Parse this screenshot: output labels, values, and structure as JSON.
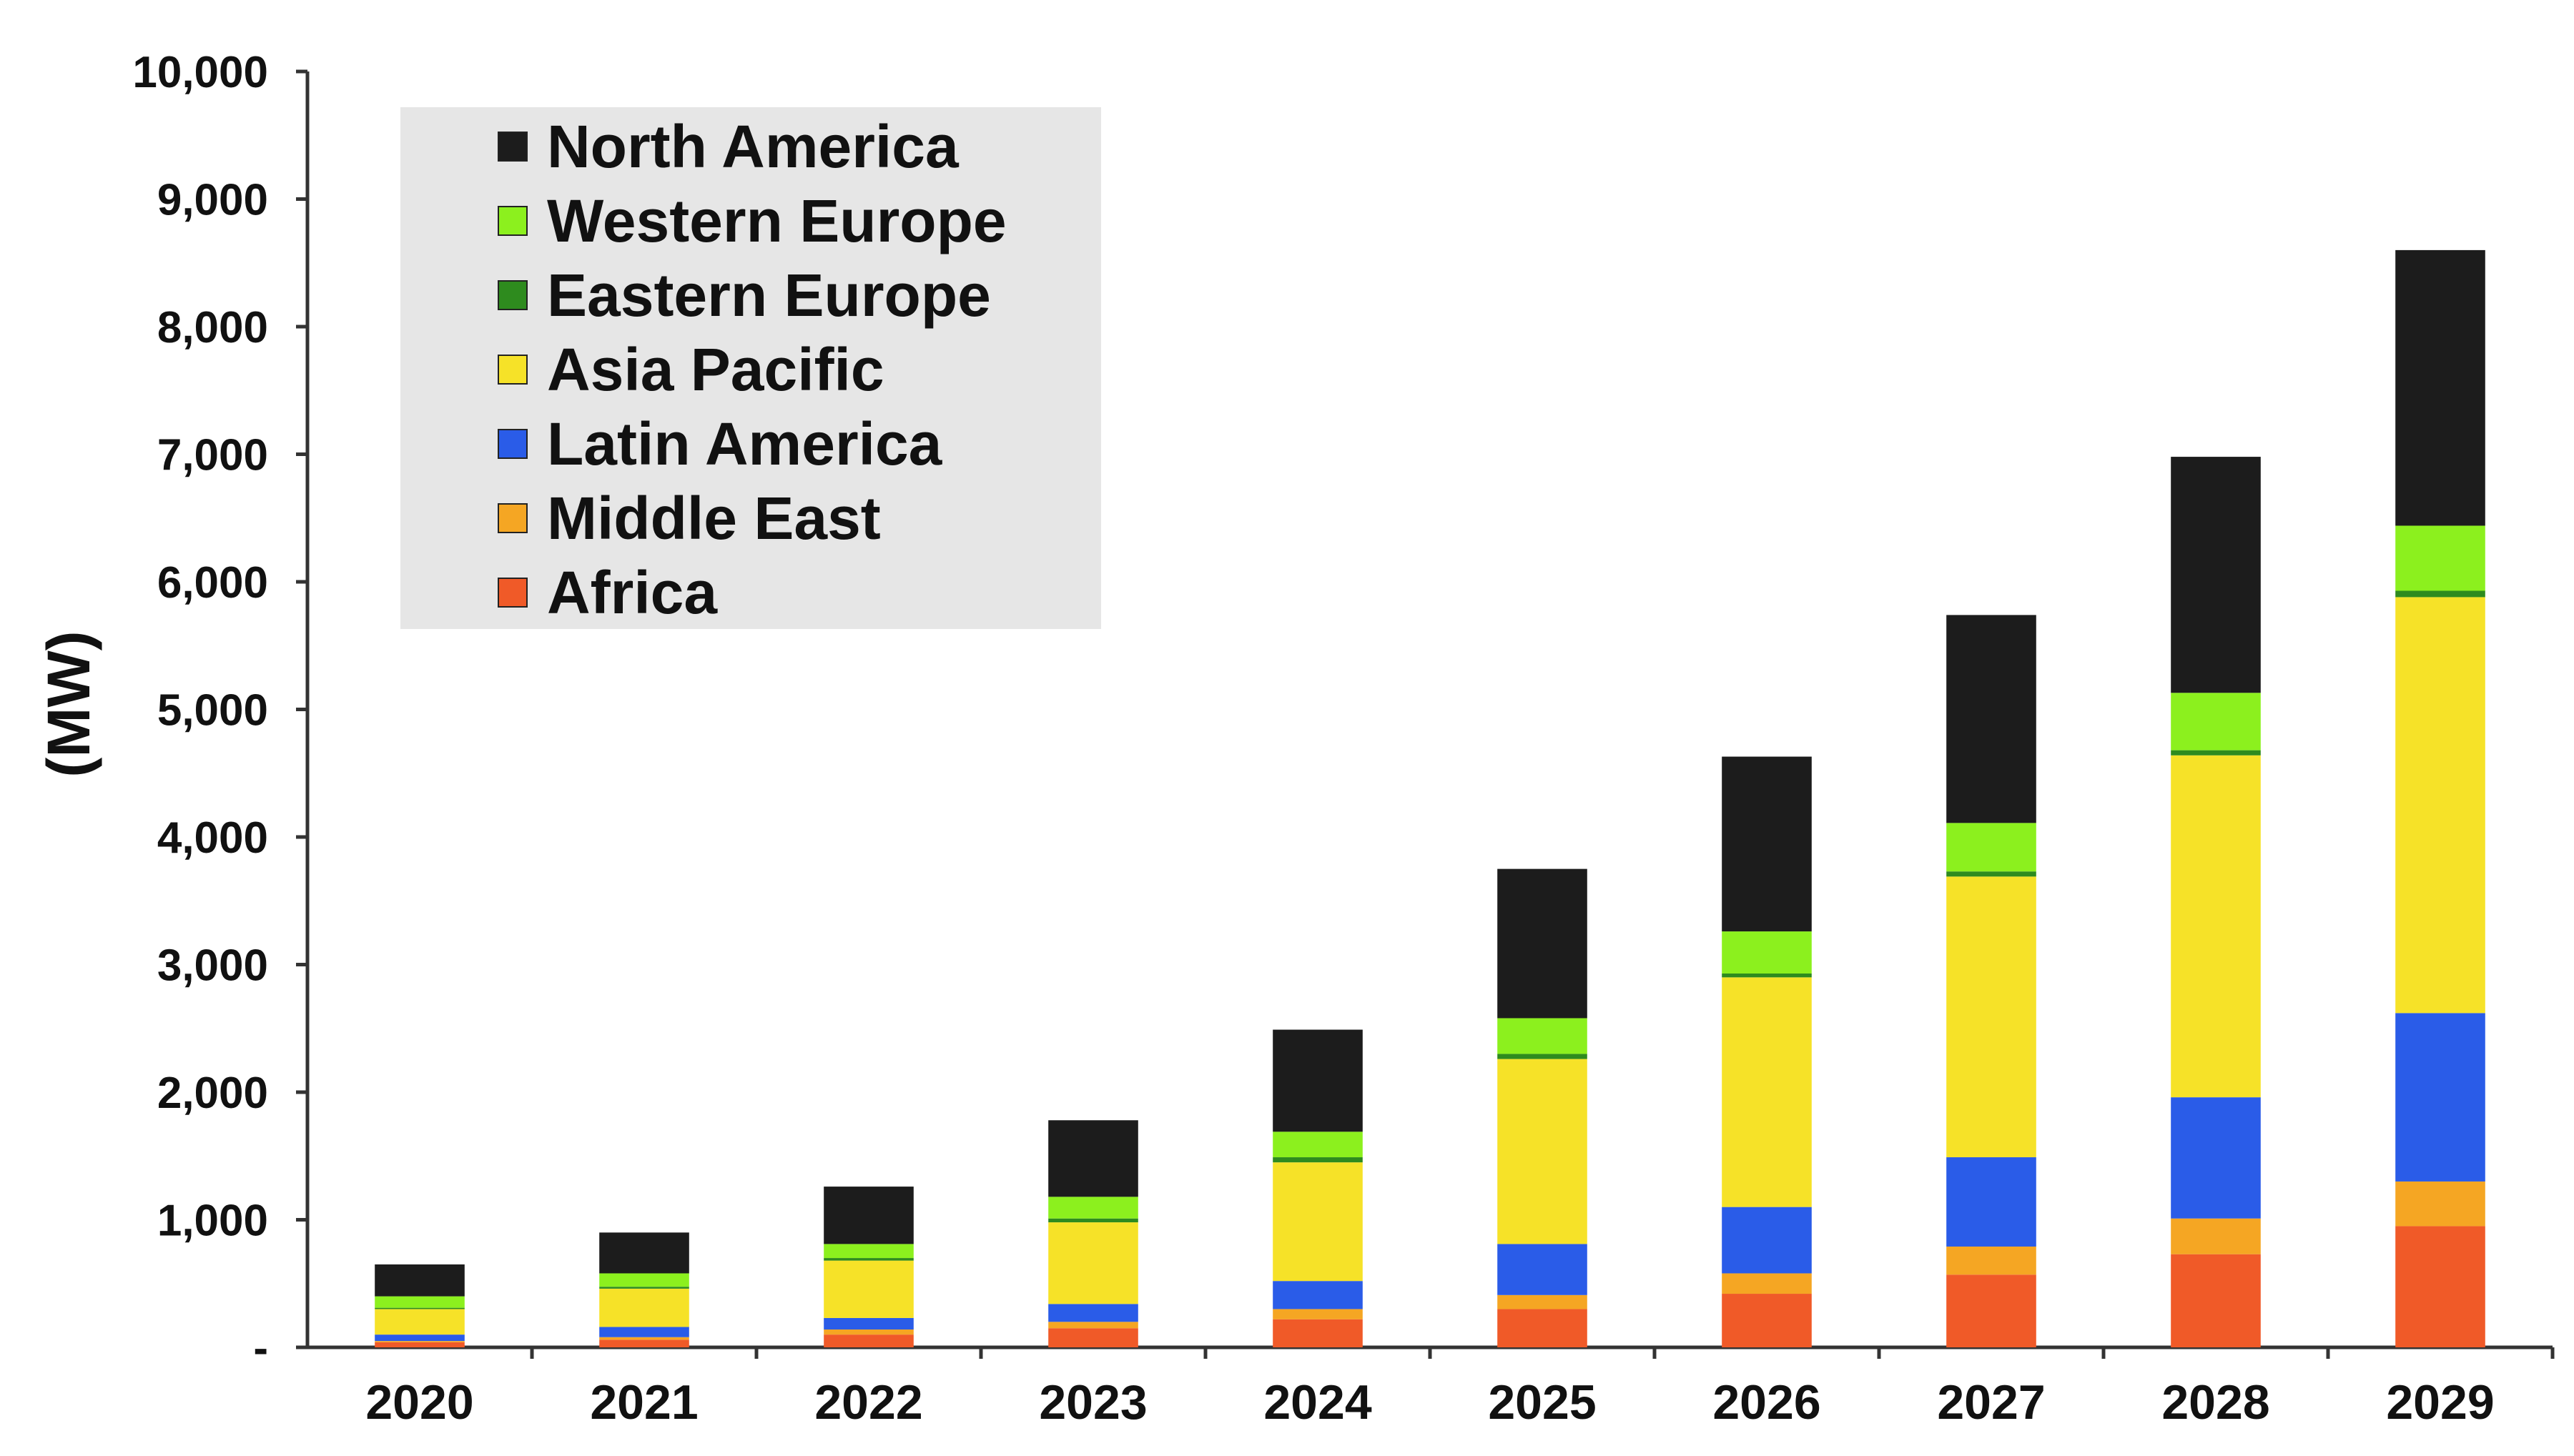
{
  "chart_data": {
    "type": "bar",
    "stacked": true,
    "title": "",
    "xlabel": "",
    "ylabel": "(MW)",
    "ylim": [
      0,
      10000
    ],
    "yticks": [
      {
        "value": 0,
        "label": "-"
      },
      {
        "value": 1000,
        "label": "1,000"
      },
      {
        "value": 2000,
        "label": "2,000"
      },
      {
        "value": 3000,
        "label": "3,000"
      },
      {
        "value": 4000,
        "label": "4,000"
      },
      {
        "value": 5000,
        "label": "5,000"
      },
      {
        "value": 6000,
        "label": "6,000"
      },
      {
        "value": 7000,
        "label": "7,000"
      },
      {
        "value": 8000,
        "label": "8,000"
      },
      {
        "value": 9000,
        "label": "9,000"
      },
      {
        "value": 10000,
        "label": "10,000"
      }
    ],
    "grid": false,
    "legend_position": "top-left",
    "categories": [
      "2020",
      "2021",
      "2022",
      "2023",
      "2024",
      "2025",
      "2026",
      "2027",
      "2028",
      "2029"
    ],
    "series": [
      {
        "name": "Africa",
        "color": "#f05a28",
        "values": [
          40,
          60,
          100,
          150,
          220,
          300,
          420,
          570,
          730,
          950
        ]
      },
      {
        "name": "Middle East",
        "color": "#f5a623",
        "values": [
          10,
          20,
          40,
          50,
          80,
          110,
          160,
          220,
          280,
          350
        ]
      },
      {
        "name": "Latin America",
        "color": "#2a5ce8",
        "values": [
          50,
          80,
          90,
          140,
          220,
          400,
          520,
          700,
          950,
          1320
        ]
      },
      {
        "name": "Asia Pacific",
        "color": "#f6e228",
        "values": [
          200,
          300,
          450,
          640,
          930,
          1450,
          1800,
          2200,
          2680,
          3260
        ]
      },
      {
        "name": "Eastern Europe",
        "color": "#2e8b1e",
        "values": [
          10,
          15,
          20,
          30,
          40,
          40,
          30,
          40,
          40,
          50
        ]
      },
      {
        "name": "Western Europe",
        "color": "#8cf01e",
        "values": [
          90,
          105,
          110,
          170,
          200,
          280,
          330,
          380,
          450,
          510
        ]
      },
      {
        "name": "North America",
        "color": "#1c1c1c",
        "values": [
          250,
          320,
          450,
          600,
          800,
          1170,
          1370,
          1630,
          1850,
          2160
        ]
      }
    ]
  }
}
